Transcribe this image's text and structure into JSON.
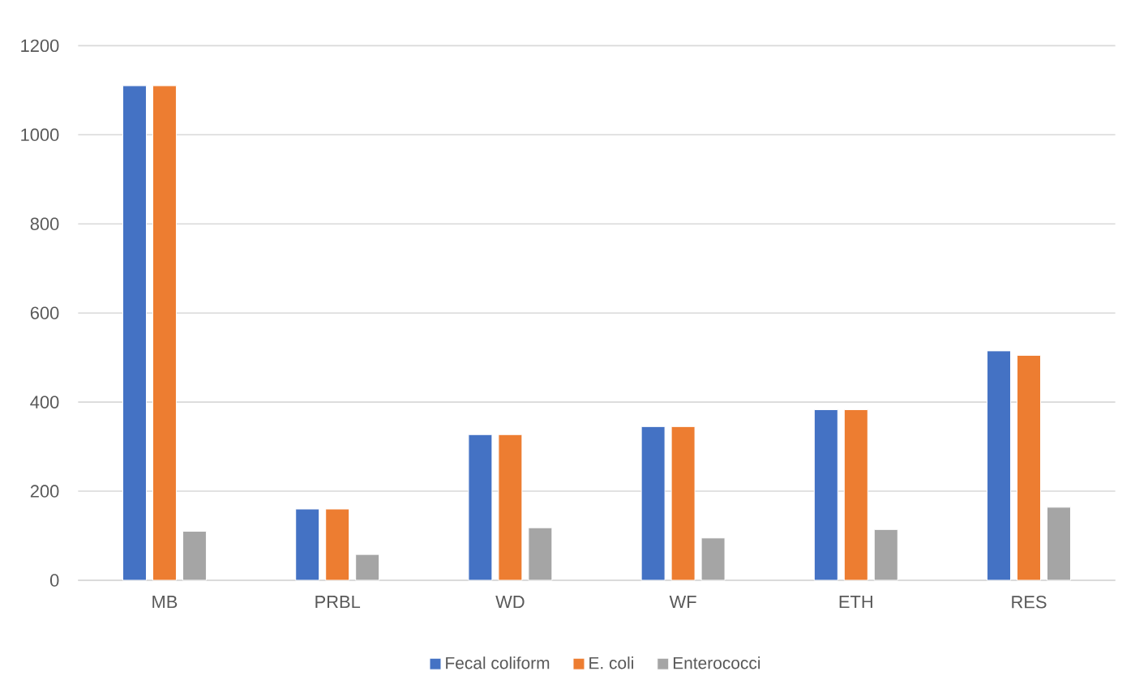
{
  "chart_data": {
    "type": "bar",
    "categories": [
      "MB",
      "PRBL",
      "WD",
      "WF",
      "ETH",
      "RES"
    ],
    "series": [
      {
        "name": "Fecal coliform",
        "color": "#4472c4",
        "values": [
          1110,
          160,
          327,
          345,
          383,
          515
        ]
      },
      {
        "name": "E. coli",
        "color": "#ed7d31",
        "values": [
          1110,
          160,
          327,
          345,
          383,
          505
        ]
      },
      {
        "name": "Enterococci",
        "color": "#a5a5a5",
        "values": [
          110,
          58,
          118,
          95,
          114,
          164
        ]
      }
    ],
    "ylim": [
      0,
      1200
    ],
    "yticks": [
      0,
      200,
      400,
      600,
      800,
      1000,
      1200
    ],
    "grid": "y",
    "legend": "bottom"
  }
}
